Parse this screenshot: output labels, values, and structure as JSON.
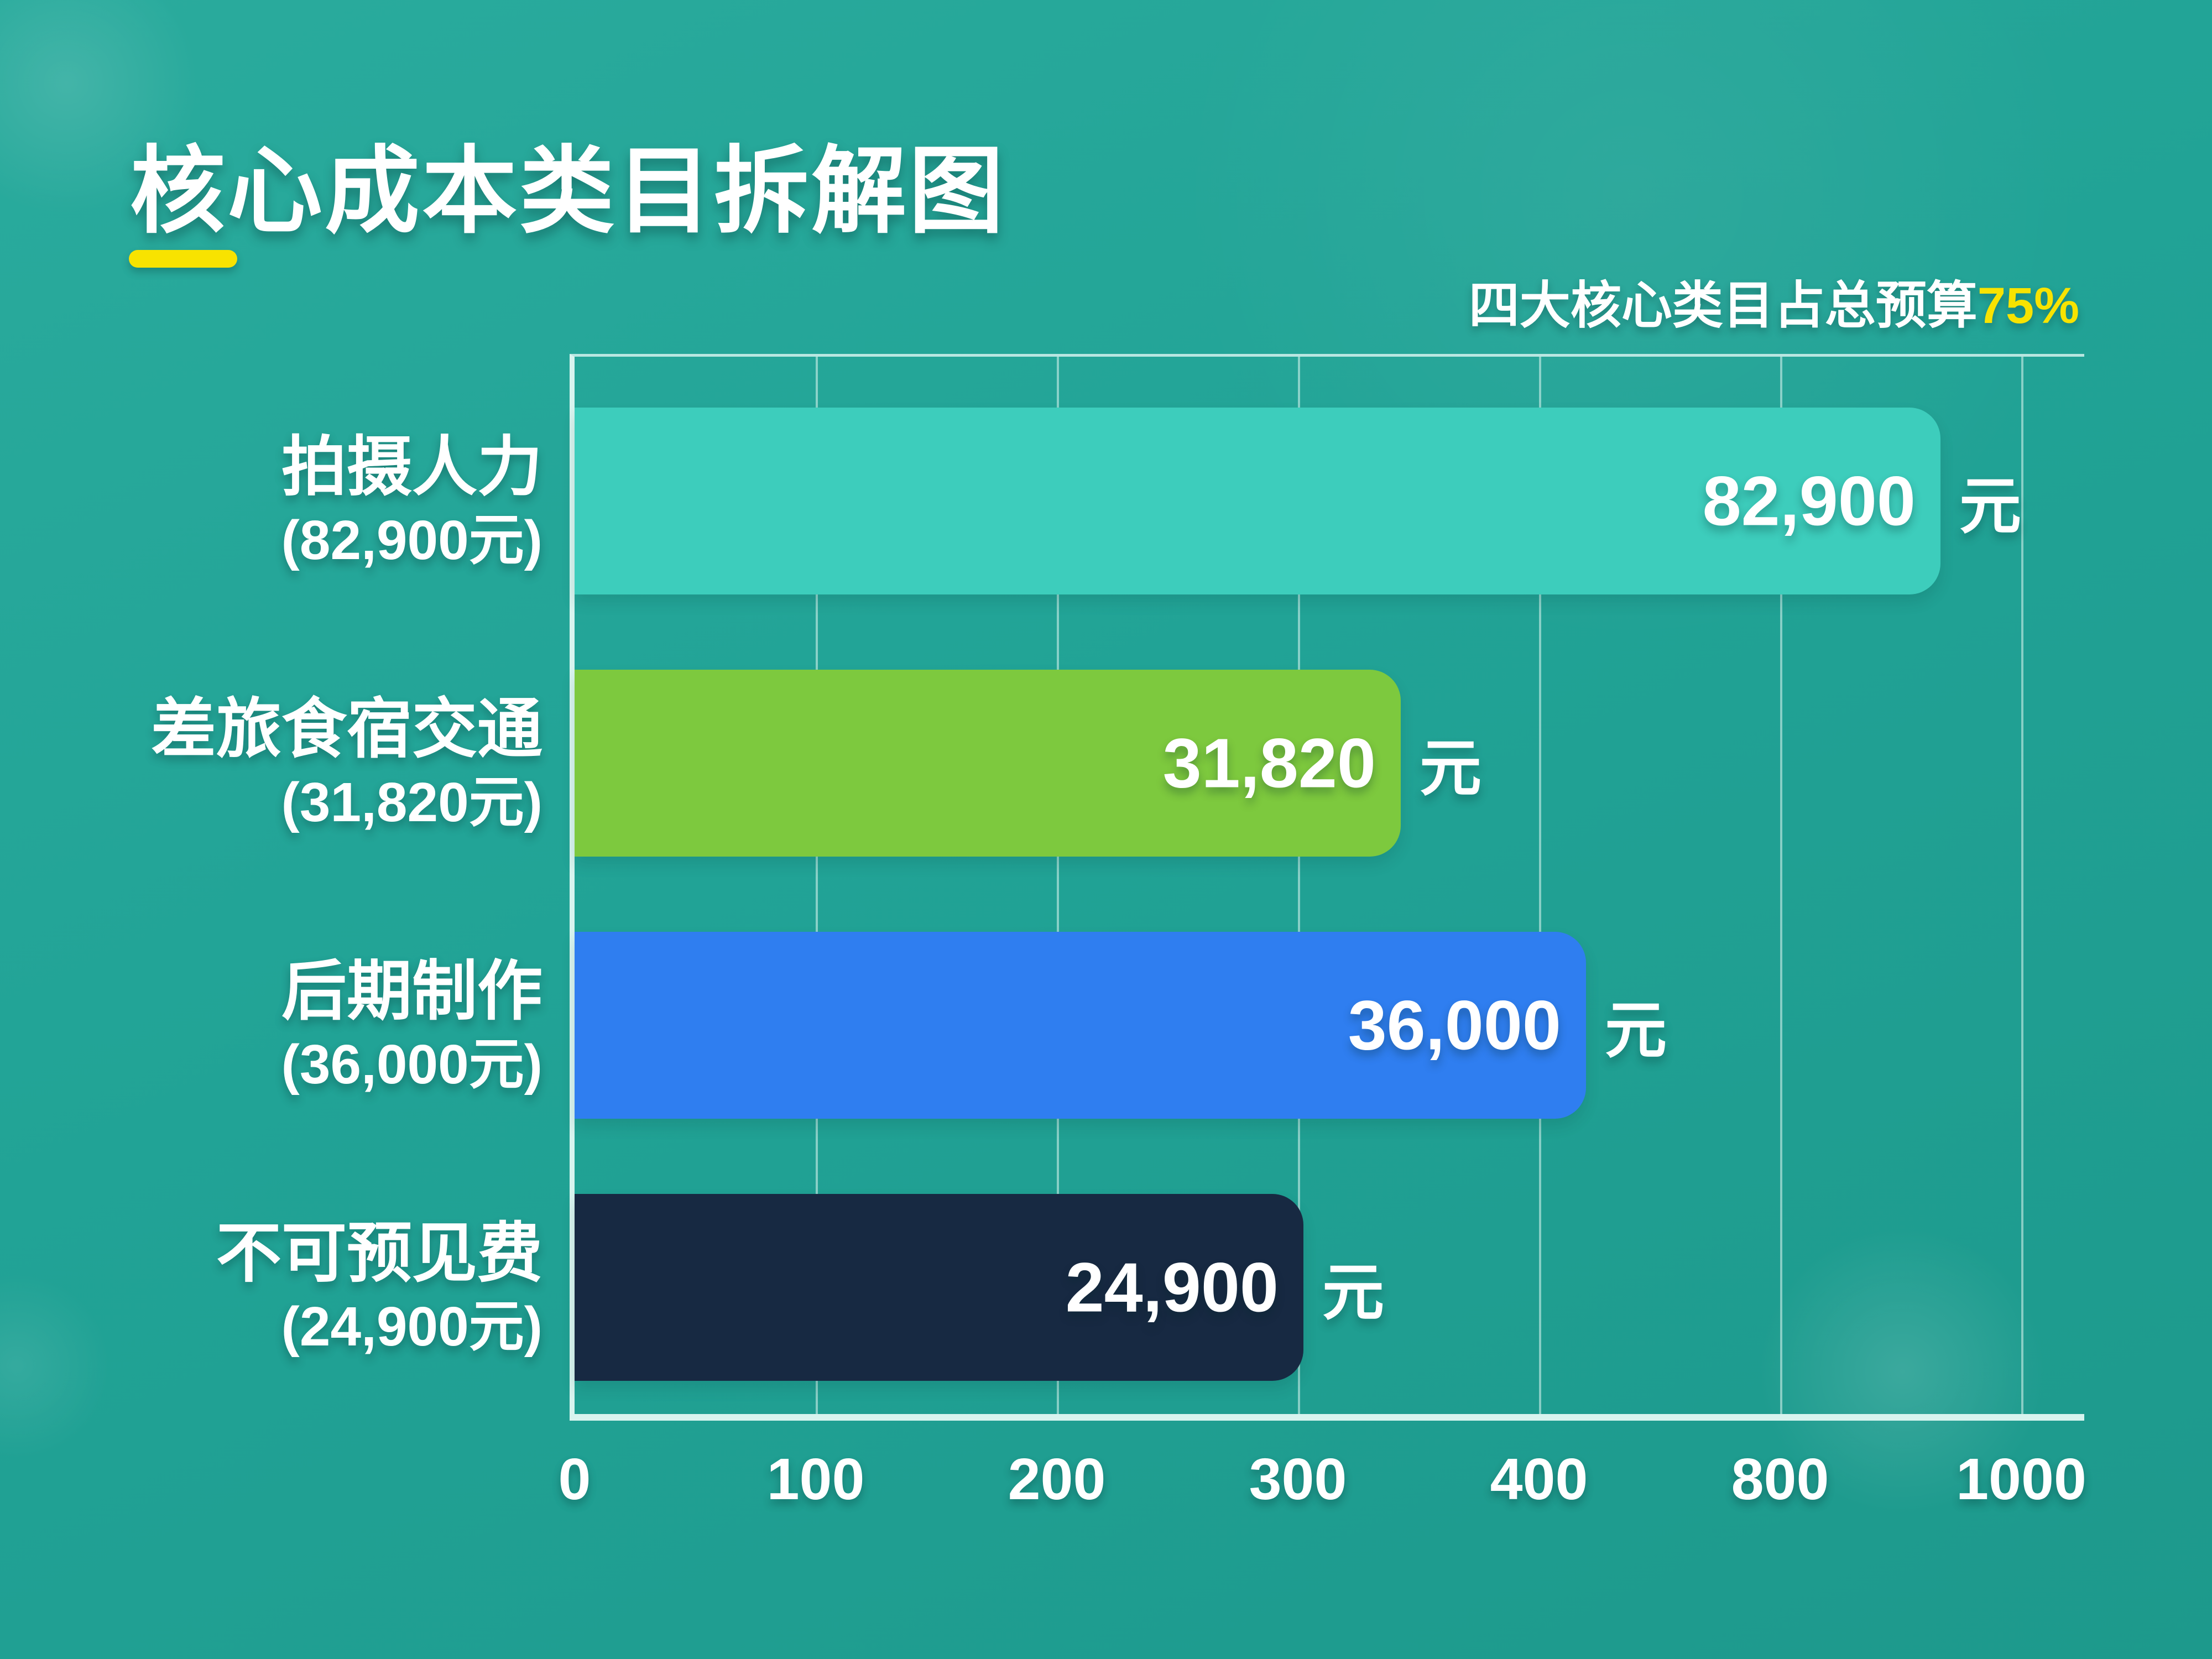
{
  "page": {
    "title": "核心成本类目拆解图",
    "subtitle_prefix": "四大核心类目占总预算",
    "subtitle_highlight": "75%"
  },
  "chart_data": {
    "type": "bar",
    "orientation": "horizontal",
    "title": "核心成本类目拆解图",
    "annotation": "四大核心类目占总预算75%",
    "categories": [
      "拍摄人力",
      "差旅食宿交通",
      "后期制作",
      "不可预见费"
    ],
    "category_sublabels": [
      "(82,900元)",
      "(31,820元)",
      "(36,000元)",
      "(24,900元)"
    ],
    "values": [
      82900,
      31820,
      36000,
      24900
    ],
    "value_labels": [
      "82,900",
      "31,820",
      "36,000",
      "24,900"
    ],
    "value_unit": "元",
    "bar_colors": [
      "#3dcdbc",
      "#7dc93e",
      "#2f7ef0",
      "#172942"
    ],
    "bar_fractions": [
      0.944,
      0.571,
      0.699,
      0.504
    ],
    "x_ticks": [
      "0",
      "100",
      "200",
      "300",
      "400",
      "800",
      "1000"
    ],
    "xlabel": "",
    "ylabel": "",
    "grid": true,
    "legend": false
  },
  "colors": {
    "background": "#21a396",
    "accent_yellow": "#f8e300",
    "axis_line": "#d8f4ef",
    "text": "#ffffff"
  }
}
